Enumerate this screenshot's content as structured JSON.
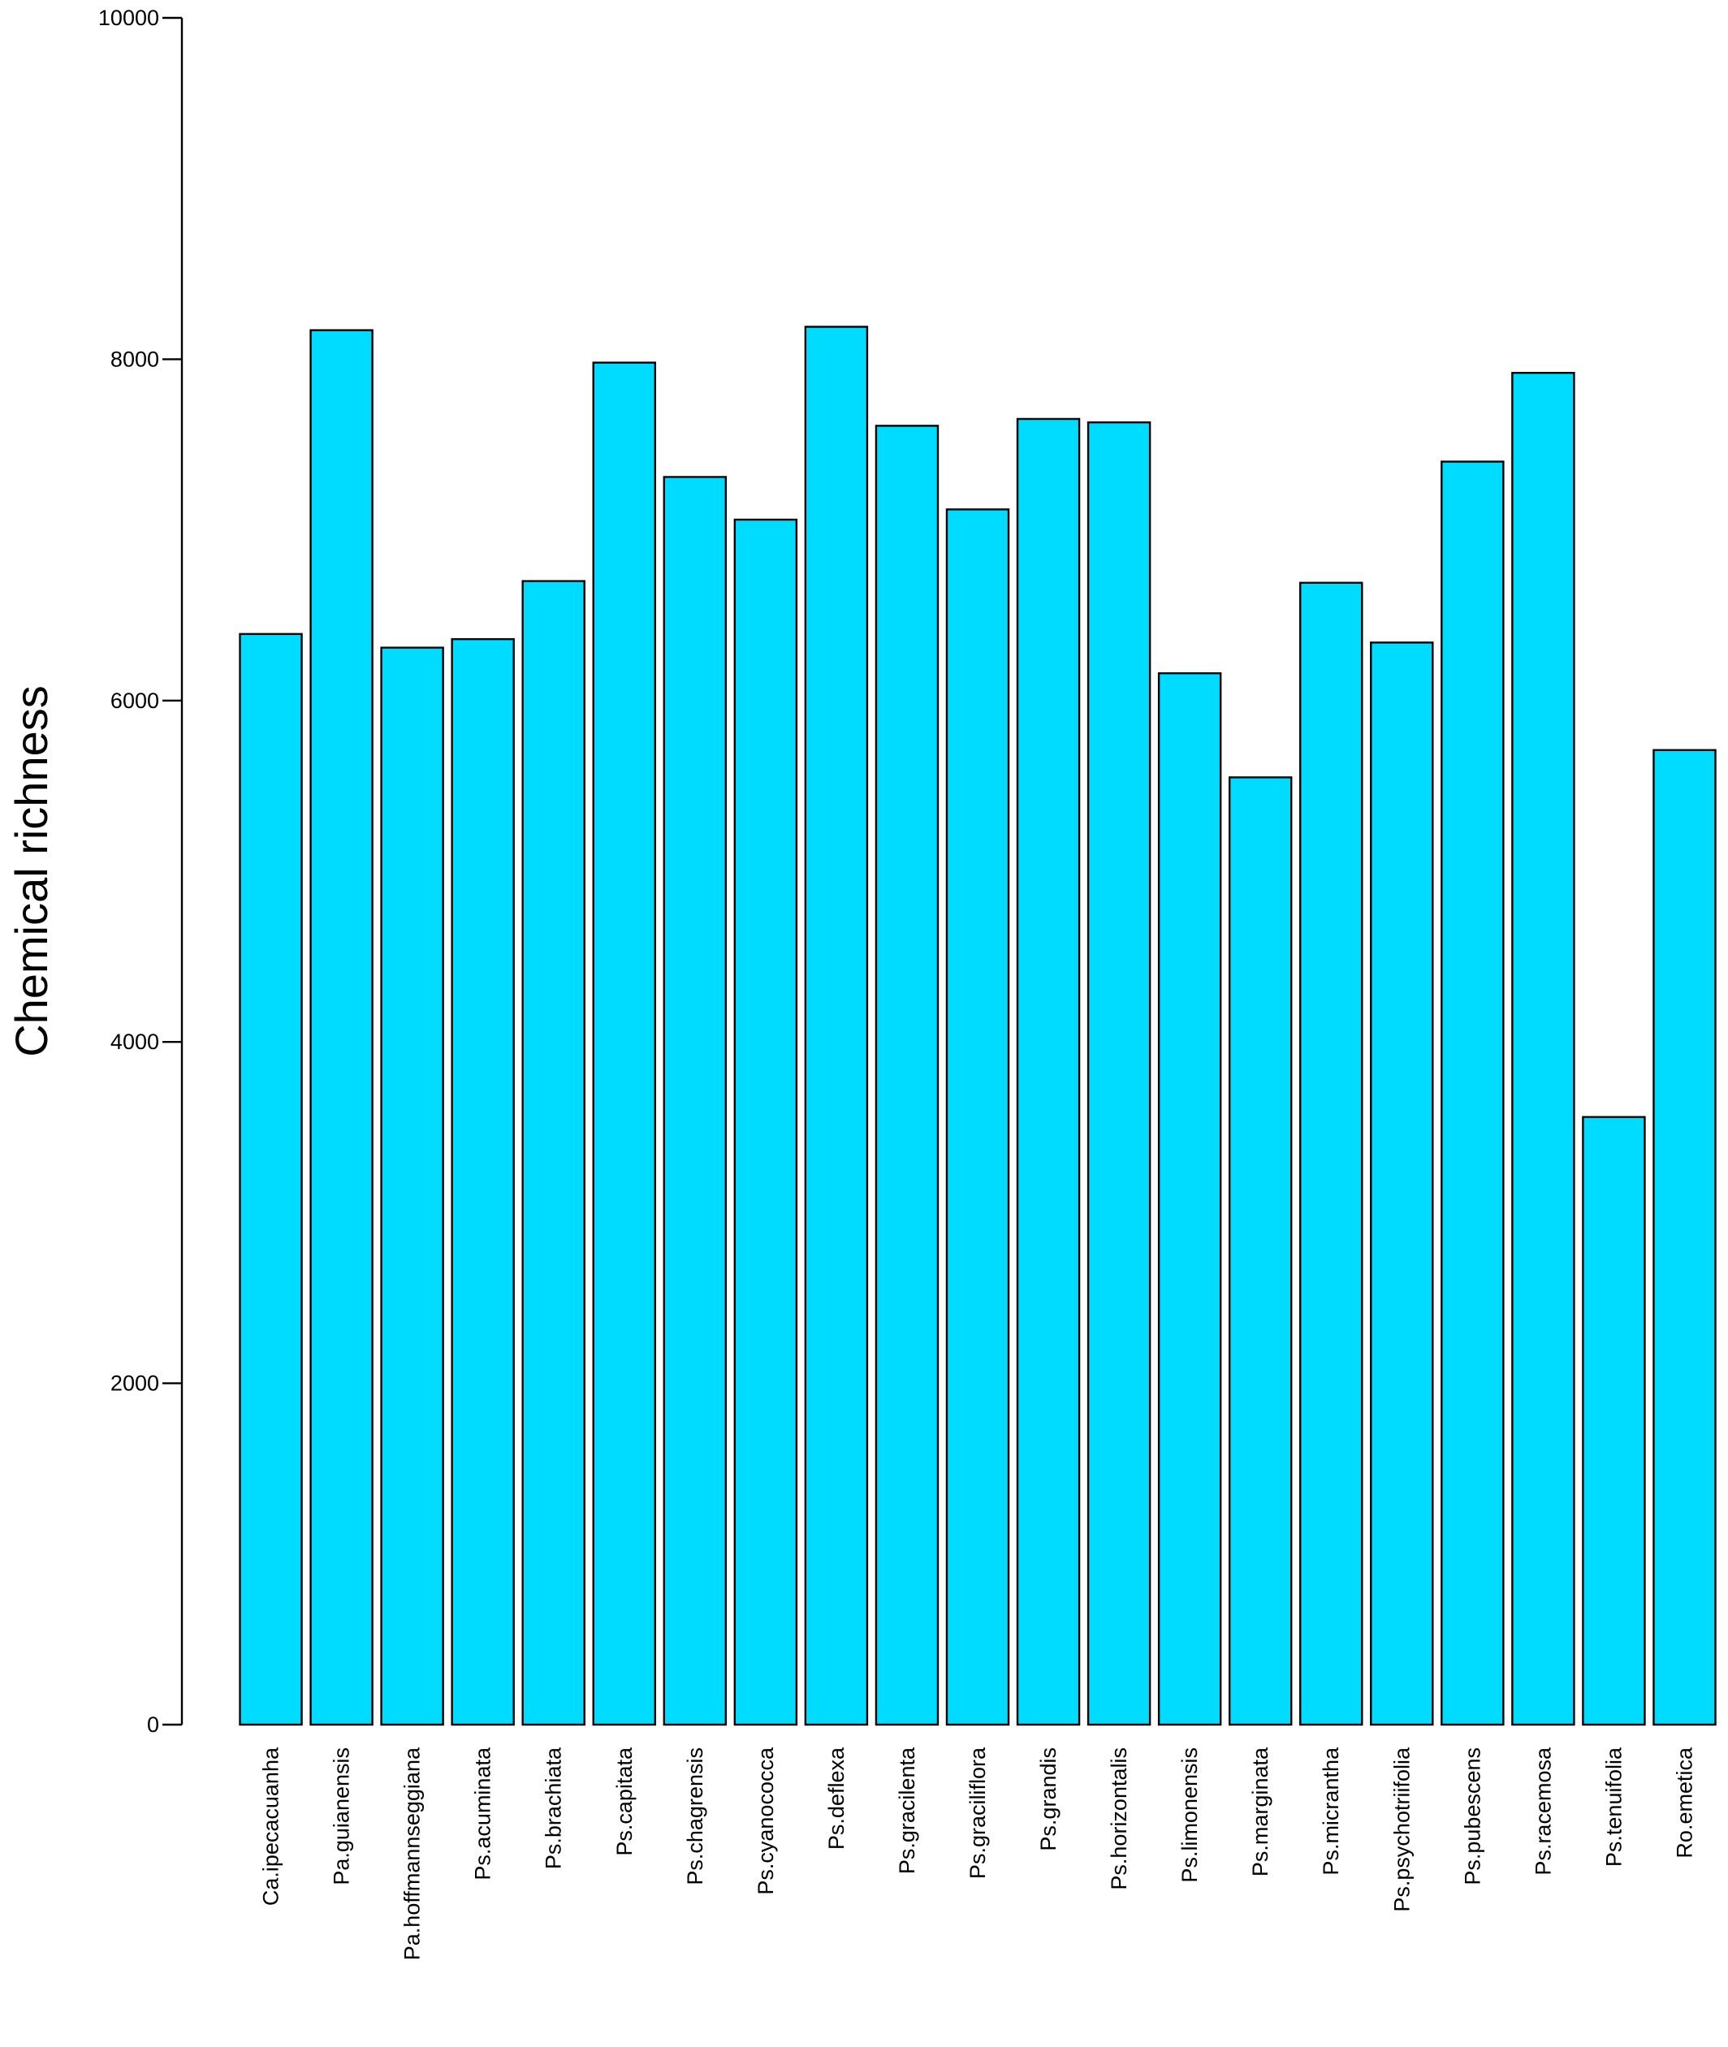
{
  "chart_data": {
    "type": "bar",
    "title": "",
    "xlabel": "",
    "ylabel": "Chemical richness",
    "ylim": [
      0,
      10000
    ],
    "yticks": [
      0,
      2000,
      4000,
      6000,
      8000,
      10000
    ],
    "grid": false,
    "legend": "none",
    "bar_color": "#00dcff",
    "bar_edge_color": "#000000",
    "categories": [
      "Ca.ipecacuanha",
      "Pa.guianensis",
      "Pa.hoffmannseggiana",
      "Ps.acuminata",
      "Ps.brachiata",
      "Ps.capitata",
      "Ps.chagrensis",
      "Ps.cyanococca",
      "Ps.deflexa",
      "Ps.gracilenta",
      "Ps.graciliflora",
      "Ps.grandis",
      "Ps.horizontalis",
      "Ps.limonensis",
      "Ps.marginata",
      "Ps.micrantha",
      "Ps.psychotriifolia",
      "Ps.pubescens",
      "Ps.racemosa",
      "Ps.tenuifolia",
      "Ro.emetica"
    ],
    "values": [
      6390,
      8170,
      6310,
      6360,
      6700,
      7980,
      7310,
      7060,
      8190,
      7610,
      7120,
      7650,
      7630,
      6160,
      5550,
      6690,
      6340,
      7400,
      7920,
      3560,
      5710
    ]
  }
}
